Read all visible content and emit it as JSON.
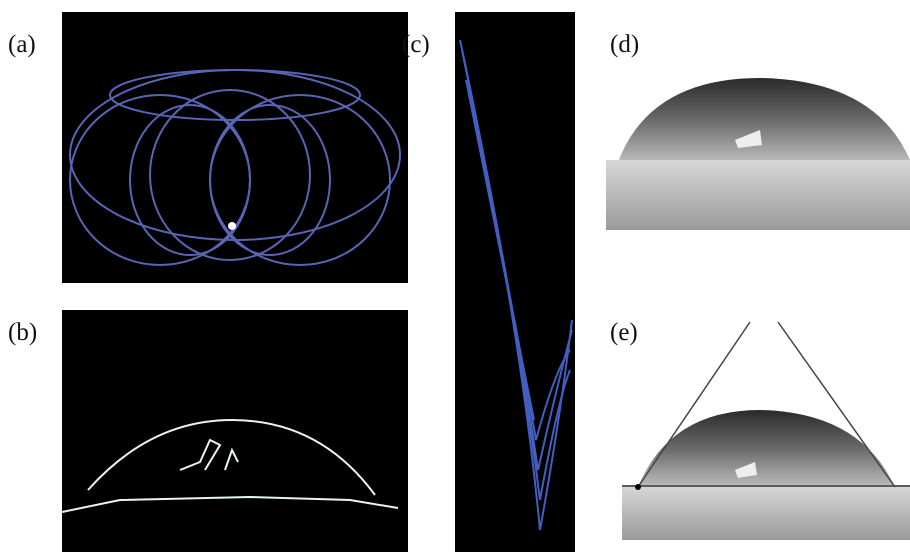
{
  "panels": [
    {
      "label": "(a)"
    },
    {
      "label": "(b)"
    },
    {
      "label": "(c)"
    },
    {
      "label": "(d)"
    },
    {
      "label": "(e)"
    }
  ]
}
